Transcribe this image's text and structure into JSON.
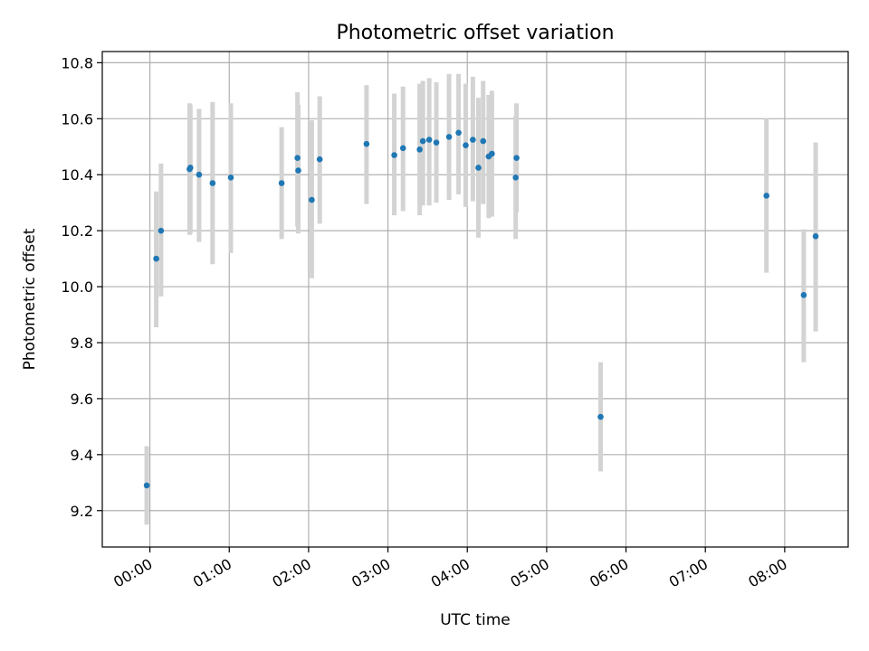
{
  "chart_data": {
    "type": "scatter",
    "title": "Photometric offset variation",
    "xlabel": "UTC time",
    "ylabel": "Photometric offset",
    "x_unit": "hours (UTC)",
    "xlim": [
      -0.6,
      8.8
    ],
    "ylim": [
      9.07,
      10.84
    ],
    "x_ticks": [
      {
        "value": 0,
        "label": "00:00"
      },
      {
        "value": 1,
        "label": "01:00"
      },
      {
        "value": 2,
        "label": "02:00"
      },
      {
        "value": 3,
        "label": "03:00"
      },
      {
        "value": 4,
        "label": "04:00"
      },
      {
        "value": 5,
        "label": "05:00"
      },
      {
        "value": 6,
        "label": "06:00"
      },
      {
        "value": 7,
        "label": "07:00"
      },
      {
        "value": 8,
        "label": "08:00"
      }
    ],
    "y_ticks": [
      {
        "value": 9.2,
        "label": "9.2"
      },
      {
        "value": 9.4,
        "label": "9.4"
      },
      {
        "value": 9.6,
        "label": "9.6"
      },
      {
        "value": 9.8,
        "label": "9.8"
      },
      {
        "value": 10.0,
        "label": "10.0"
      },
      {
        "value": 10.2,
        "label": "10.2"
      },
      {
        "value": 10.4,
        "label": "10.4"
      },
      {
        "value": 10.6,
        "label": "10.6"
      },
      {
        "value": 10.8,
        "label": "10.8"
      }
    ],
    "grid": true,
    "marker_color": "#1f77b4",
    "errorbar_color": "#d3d3d3",
    "points": [
      {
        "x": -0.04,
        "y": 9.29,
        "err_low": 9.15,
        "err_high": 9.43
      },
      {
        "x": 0.08,
        "y": 10.1,
        "err_low": 9.855,
        "err_high": 10.34
      },
      {
        "x": 0.14,
        "y": 10.2,
        "err_low": 9.965,
        "err_high": 10.44
      },
      {
        "x": 0.5,
        "y": 10.42,
        "err_low": 10.185,
        "err_high": 10.655
      },
      {
        "x": 0.51,
        "y": 10.425,
        "err_low": 10.19,
        "err_high": 10.65
      },
      {
        "x": 0.62,
        "y": 10.4,
        "err_low": 10.16,
        "err_high": 10.635
      },
      {
        "x": 0.79,
        "y": 10.37,
        "err_low": 10.08,
        "err_high": 10.66
      },
      {
        "x": 1.02,
        "y": 10.39,
        "err_low": 10.12,
        "err_high": 10.655
      },
      {
        "x": 1.66,
        "y": 10.37,
        "err_low": 10.17,
        "err_high": 10.57
      },
      {
        "x": 1.86,
        "y": 10.46,
        "err_low": 10.215,
        "err_high": 10.695
      },
      {
        "x": 1.87,
        "y": 10.415,
        "err_low": 10.19,
        "err_high": 10.65
      },
      {
        "x": 2.04,
        "y": 10.31,
        "err_low": 10.03,
        "err_high": 10.595
      },
      {
        "x": 2.14,
        "y": 10.455,
        "err_low": 10.225,
        "err_high": 10.68
      },
      {
        "x": 2.73,
        "y": 10.51,
        "err_low": 10.295,
        "err_high": 10.72
      },
      {
        "x": 3.08,
        "y": 10.47,
        "err_low": 10.255,
        "err_high": 10.69
      },
      {
        "x": 3.19,
        "y": 10.495,
        "err_low": 10.27,
        "err_high": 10.715
      },
      {
        "x": 3.4,
        "y": 10.49,
        "err_low": 10.255,
        "err_high": 10.725
      },
      {
        "x": 3.44,
        "y": 10.52,
        "err_low": 10.29,
        "err_high": 10.735
      },
      {
        "x": 3.52,
        "y": 10.525,
        "err_low": 10.29,
        "err_high": 10.745
      },
      {
        "x": 3.61,
        "y": 10.515,
        "err_low": 10.3,
        "err_high": 10.73
      },
      {
        "x": 3.77,
        "y": 10.535,
        "err_low": 10.31,
        "err_high": 10.76
      },
      {
        "x": 3.89,
        "y": 10.55,
        "err_low": 10.33,
        "err_high": 10.76
      },
      {
        "x": 3.98,
        "y": 10.505,
        "err_low": 10.285,
        "err_high": 10.725
      },
      {
        "x": 4.07,
        "y": 10.525,
        "err_low": 10.305,
        "err_high": 10.75
      },
      {
        "x": 4.14,
        "y": 10.425,
        "err_low": 10.175,
        "err_high": 10.675
      },
      {
        "x": 4.2,
        "y": 10.52,
        "err_low": 10.295,
        "err_high": 10.735
      },
      {
        "x": 4.27,
        "y": 10.465,
        "err_low": 10.245,
        "err_high": 10.685
      },
      {
        "x": 4.31,
        "y": 10.475,
        "err_low": 10.25,
        "err_high": 10.7
      },
      {
        "x": 4.61,
        "y": 10.39,
        "err_low": 10.17,
        "err_high": 10.61
      },
      {
        "x": 4.62,
        "y": 10.46,
        "err_low": 10.265,
        "err_high": 10.655
      },
      {
        "x": 5.68,
        "y": 9.535,
        "err_low": 9.34,
        "err_high": 9.73
      },
      {
        "x": 7.77,
        "y": 10.325,
        "err_low": 10.05,
        "err_high": 10.6
      },
      {
        "x": 8.24,
        "y": 9.97,
        "err_low": 9.73,
        "err_high": 10.205
      },
      {
        "x": 8.39,
        "y": 10.18,
        "err_low": 9.84,
        "err_high": 10.515
      }
    ]
  }
}
